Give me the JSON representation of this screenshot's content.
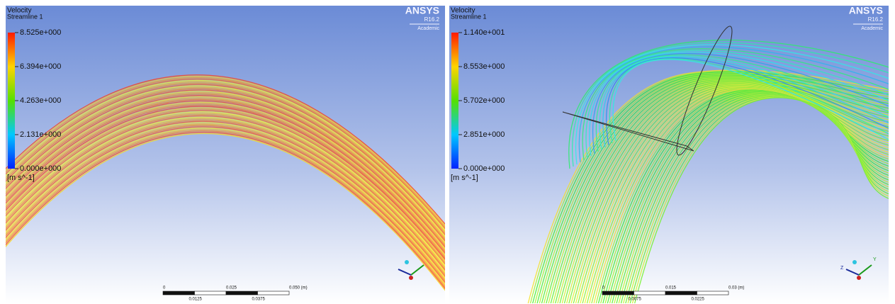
{
  "panels": [
    {
      "legend": {
        "title": "Velocity",
        "subtitle": "Streamline 1",
        "labels": [
          "8.525e+000",
          "6.394e+000",
          "4.263e+000",
          "2.131e+000",
          "0.000e+000"
        ],
        "unit": "[m s^-1]"
      },
      "logo": {
        "name": "ANSYS",
        "version": "R16.2",
        "edition": "Academic"
      },
      "scale_bar": {
        "top_labels": [
          "0",
          "0.025",
          "0.050 (m)"
        ],
        "bottom_labels": [
          "0.0125",
          "0.0375"
        ]
      }
    },
    {
      "legend": {
        "title": "Velocity",
        "subtitle": "Streamline 1",
        "labels": [
          "1.140e+001",
          "8.553e+000",
          "5.702e+000",
          "2.851e+000",
          "0.000e+000"
        ],
        "unit": "[m s^-1]"
      },
      "logo": {
        "name": "ANSYS",
        "version": "R16.2",
        "edition": "Academic"
      },
      "scale_bar": {
        "top_labels": [
          "0",
          "0.015",
          "0.03 (m)"
        ],
        "bottom_labels": [
          "0.0075",
          "0.0225"
        ]
      },
      "triad": [
        "Y",
        "Z"
      ]
    }
  ]
}
